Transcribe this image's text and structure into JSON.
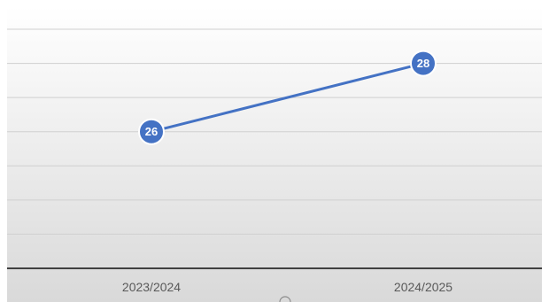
{
  "chart_data": {
    "type": "line",
    "categories": [
      "2023/2024",
      "2024/2025"
    ],
    "series": [
      {
        "values": [
          26,
          28
        ]
      }
    ],
    "data_labels": [
      "26",
      "28"
    ],
    "ylim": [
      22,
      29
    ],
    "grid": true,
    "legend": "none",
    "colors": {
      "line": "#4472C4",
      "marker": "#4472C4",
      "marker_border": "#ffffff",
      "grid": "#d0d0d0",
      "axis": "#404040",
      "background_top": "#ffffff",
      "background_bottom": "#d9d9d9"
    }
  }
}
